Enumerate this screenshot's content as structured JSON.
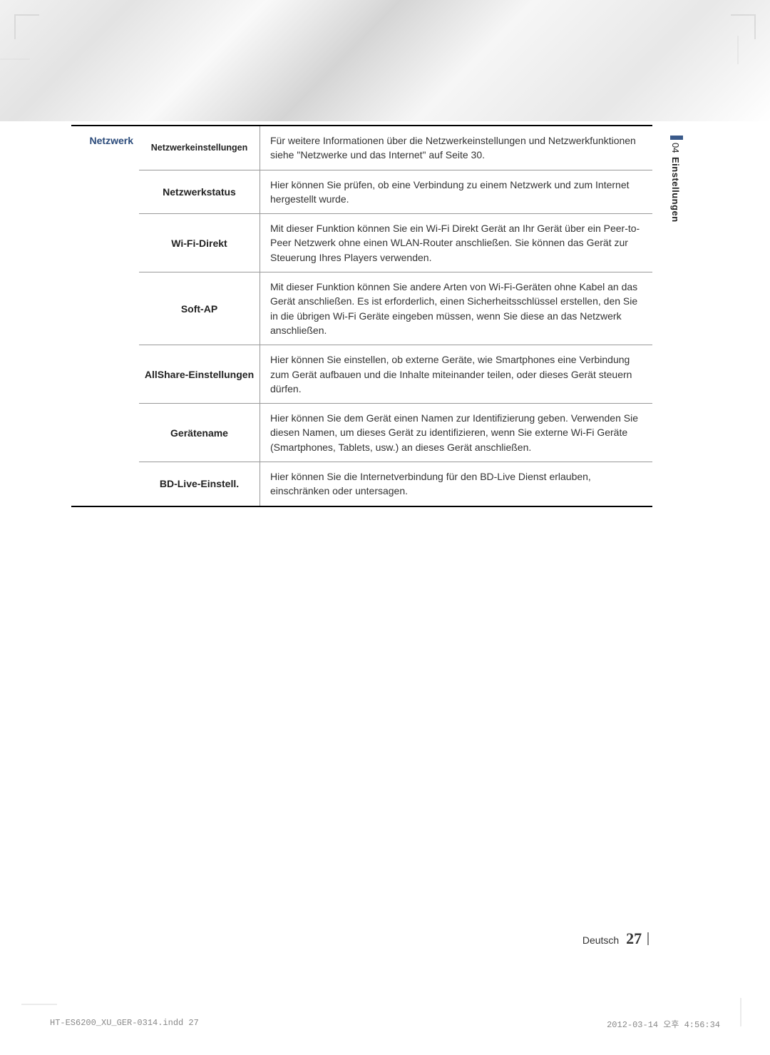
{
  "colors": {
    "section_header_color": "#2a4a7a",
    "border_strong": "#000000",
    "border_light": "#999999",
    "text": "#333333",
    "side_mark": "#3a5a8a",
    "bg": "#ffffff"
  },
  "side": {
    "num": "04",
    "label": "Einstellungen"
  },
  "section": {
    "title": "Netzwerk",
    "rows": [
      {
        "label": "Netzwerkeinstellungen",
        "label_small": true,
        "desc": "Für weitere Informationen über die Netzwerkeinstellungen und Netzwerkfunktionen siehe \"Netzwerke und das Internet\" auf Seite 30."
      },
      {
        "label": "Netzwerkstatus",
        "desc": "Hier können Sie prüfen, ob eine Verbindung zu einem Netzwerk und zum Internet hergestellt wurde."
      },
      {
        "label": "Wi-Fi-Direkt",
        "desc": "Mit dieser Funktion können Sie ein Wi-Fi Direkt Gerät an Ihr Gerät über ein Peer-to-Peer Netzwerk ohne einen WLAN-Router anschließen. Sie können das Gerät zur Steuerung Ihres Players verwenden."
      },
      {
        "label": "Soft-AP",
        "desc": "Mit dieser Funktion können Sie andere Arten von Wi-Fi-Geräten ohne Kabel an das Gerät anschließen. Es ist erforderlich, einen Sicherheitsschlüssel erstellen, den Sie in die übrigen Wi-Fi Geräte eingeben müssen, wenn Sie diese an das Netzwerk anschließen."
      },
      {
        "label": "AllShare-Einstellungen",
        "desc": "Hier können Sie einstellen, ob externe Geräte, wie Smartphones eine Verbindung zum Gerät aufbauen und die Inhalte miteinander teilen, oder dieses Gerät steuern dürfen."
      },
      {
        "label": "Gerätename",
        "desc": "Hier können Sie dem Gerät einen Namen zur Identifizierung geben. Verwenden Sie diesen Namen, um dieses Gerät zu identifizieren, wenn Sie externe Wi-Fi Geräte (Smartphones, Tablets, usw.) an dieses Gerät anschließen."
      },
      {
        "label": "BD-Live-Einstell.",
        "desc": "Hier können Sie die Internetverbindung für den BD-Live Dienst erlauben, einschränken oder untersagen."
      }
    ]
  },
  "footer": {
    "lang": "Deutsch",
    "page": "27"
  },
  "meta": {
    "file": "HT-ES6200_XU_GER-0314.indd   27",
    "timestamp": "2012-03-14   오후 4:56:34"
  }
}
